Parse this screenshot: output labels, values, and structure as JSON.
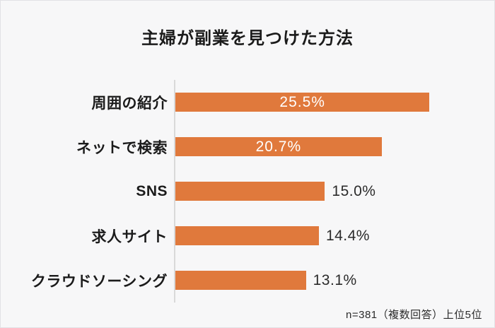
{
  "chart_data": {
    "type": "bar",
    "orientation": "horizontal",
    "title": "主婦が副業を見つけた方法",
    "categories": [
      "周囲の紹介",
      "ネットで検索",
      "SNS",
      "求人サイト",
      "クラウドソーシング"
    ],
    "values": [
      25.5,
      20.7,
      15.0,
      14.4,
      13.1
    ],
    "value_labels": [
      "25.5%",
      "20.7%",
      "15.0%",
      "14.4%",
      "13.1%"
    ],
    "unit": "%",
    "xlim": [
      0,
      32
    ],
    "grid": false,
    "legend": "none",
    "bar_color": "#e0793c",
    "axis_line_color": "#d9d9d9",
    "value_label_inside_color": "#ffffff",
    "value_label_outside_color": "#2b2b2b",
    "value_label_inside_threshold": 20,
    "footnote": "n=381（複数回答）上位5位"
  }
}
